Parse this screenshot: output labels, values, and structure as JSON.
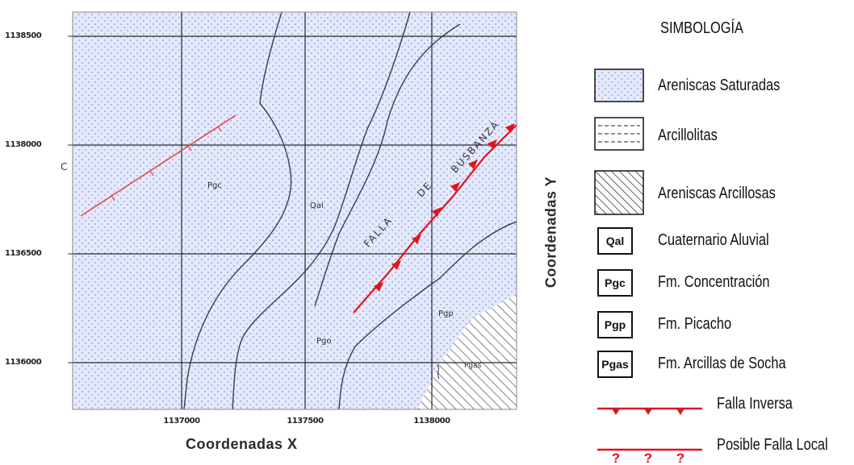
{
  "map": {
    "y_ticks": [
      "1138500",
      "1138000",
      "1136500",
      "1136000"
    ],
    "x_ticks": [
      "1137000",
      "1137500",
      "1138000"
    ],
    "x_axis_title": "Coordenadas X",
    "y_axis_title": "Coordenadas Y",
    "labels": {
      "c_marker": "C",
      "pgc": "Pgc",
      "qal": "Qal",
      "pgo": "Pgo",
      "pgp": "Pgp",
      "pgas": "Pgas"
    },
    "fault_label": [
      "FALLA",
      "DE",
      "BUSBANZÁ"
    ],
    "colors": {
      "saturated_sandstone_fill": "#e4e9fb",
      "dot_color": "#8c97d8",
      "contour": "#3a3c50",
      "fault": "#e0141e"
    }
  },
  "legend": {
    "title": "SIMBOLOGÍA",
    "items": {
      "areniscas_saturadas": "Areniscas Saturadas",
      "arcillolitas": "Arcillolitas",
      "areniscas_arcillosas": "Areniscas Arcillosas",
      "qal_code": "Qal",
      "qal_desc": "Cuaternario Aluvial",
      "pgc_code": "Pgc",
      "pgc_desc": "Fm. Concentración",
      "pgp_code": "Pgp",
      "pgp_desc": "Fm. Picacho",
      "pgas_code": "Pgas",
      "pgas_desc": "Fm. Arcillas de Socha",
      "falla_inversa": "Falla Inversa",
      "posible_falla": "Posible Falla Local"
    }
  }
}
